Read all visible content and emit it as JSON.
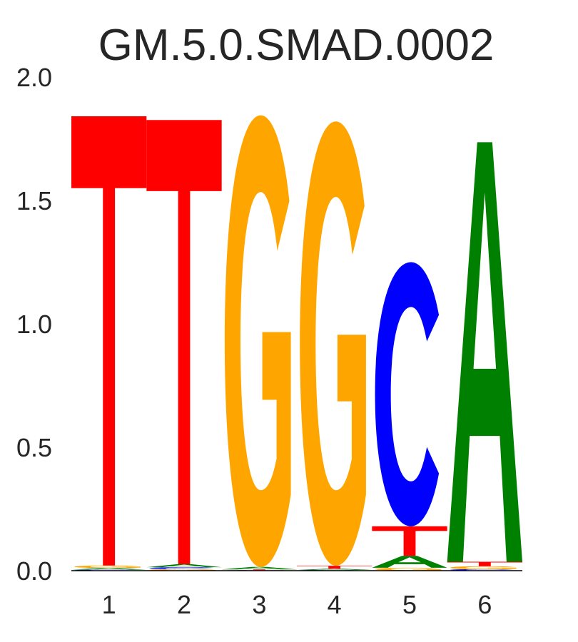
{
  "chart_data": {
    "type": "sequence-logo",
    "title": "GM.5.0.SMAD.0002",
    "ylim": [
      0,
      2
    ],
    "yticks": [
      "0.0",
      "0.5",
      "1.0",
      "1.5",
      "2.0"
    ],
    "positions": [
      "1",
      "2",
      "3",
      "4",
      "5",
      "6"
    ],
    "colors": {
      "A": "#008000",
      "C": "#0000ff",
      "G": "#ffa500",
      "T": "#ff0000"
    },
    "stacks": [
      [
        {
          "letter": "C",
          "height": 0.004
        },
        {
          "letter": "A",
          "height": 0.007
        },
        {
          "letter": "G",
          "height": 0.01
        },
        {
          "letter": "T",
          "height": 1.82
        }
      ],
      [
        {
          "letter": "G",
          "height": 0.006
        },
        {
          "letter": "C",
          "height": 0.008
        },
        {
          "letter": "A",
          "height": 0.012
        },
        {
          "letter": "T",
          "height": 1.8
        }
      ],
      [
        {
          "letter": "C",
          "height": 0.002
        },
        {
          "letter": "T",
          "height": 0.003
        },
        {
          "letter": "A",
          "height": 0.01
        },
        {
          "letter": "G",
          "height": 1.83
        }
      ],
      [
        {
          "letter": "C",
          "height": 0.003
        },
        {
          "letter": "A",
          "height": 0.005
        },
        {
          "letter": "T",
          "height": 0.012
        },
        {
          "letter": "G",
          "height": 1.8
        }
      ],
      [
        {
          "letter": "G",
          "height": 0.012
        },
        {
          "letter": "A",
          "height": 0.048
        },
        {
          "letter": "T",
          "height": 0.12
        },
        {
          "letter": "C",
          "height": 1.07
        }
      ],
      [
        {
          "letter": "C",
          "height": 0.006
        },
        {
          "letter": "G",
          "height": 0.012
        },
        {
          "letter": "T",
          "height": 0.018
        },
        {
          "letter": "A",
          "height": 1.7
        }
      ]
    ]
  }
}
